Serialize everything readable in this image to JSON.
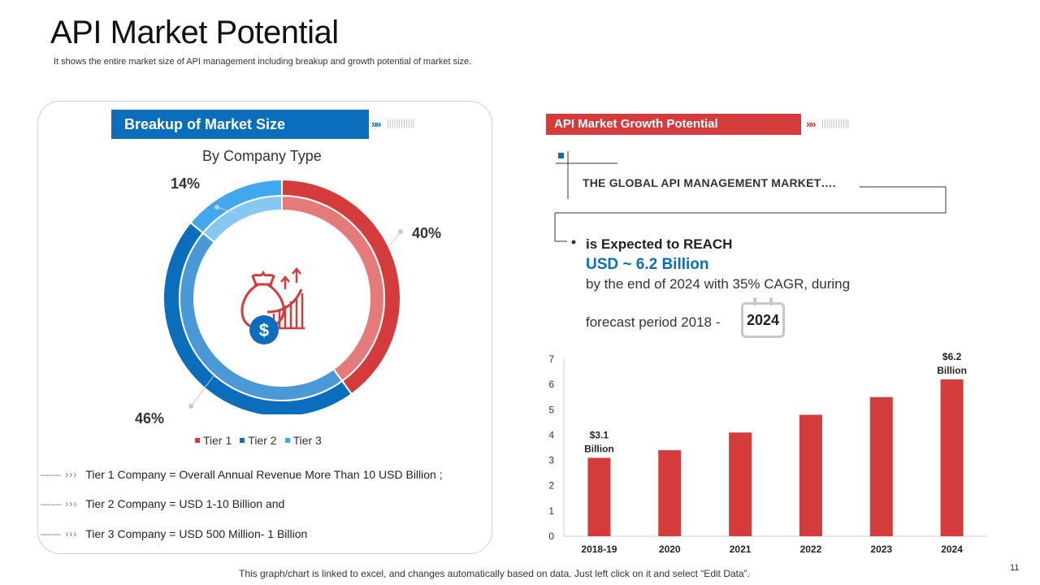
{
  "header": {
    "title": "API Market Potential",
    "subtitle": "It shows the entire market size of API  management including breakup and growth potential of market size."
  },
  "left": {
    "header": "Breakup of  Market Size",
    "chevrons": "»»",
    "ticks": "||||||||||||",
    "by_company": "By Company Type",
    "tier_descriptions": [
      "Tier 1 Company = Overall Annual Revenue More Than 10 USD Billion ;",
      "Tier 2 Company = USD 1-10 Billion and",
      "Tier 3 Company = USD 500 Million-  1 Billion"
    ],
    "tier_arrow": "—— ›››"
  },
  "right": {
    "header": "API Market Growth Potential",
    "chevrons": "»»",
    "ticks": "||||||||||||",
    "global_text": "THE GLOBAL API MANAGEMENT MARKET….",
    "expected": "is Expected to REACH",
    "usd": "USD ~ 6.2 Billion",
    "by_end": "by the end of 2024 with 35% CAGR, during",
    "forecast": "forecast period 2018  -",
    "badge_year": "2024"
  },
  "footer": {
    "note": "This graph/chart is linked to excel, and changes automatically based on data. Just left click on it and select “Edit Data”.",
    "page_number": "11"
  },
  "colors": {
    "tier1": "#d43c3c",
    "tier1_inner": "#e57a7a",
    "tier2": "#0a6ebd",
    "tier2_inner": "#4a98d6",
    "tier3": "#41a7ee",
    "tier3_inner": "#86c8f2",
    "bar": "#d43c3c"
  },
  "icons": {
    "center": "money-bag-growth-icon"
  },
  "chart_data": [
    {
      "type": "pie",
      "title": "By Company Type",
      "categories": [
        "Tier 1",
        "Tier 2",
        "Tier 3"
      ],
      "values": [
        40,
        46,
        14
      ],
      "labels": [
        "40%",
        "46%",
        "14%"
      ],
      "legend": "bottom"
    },
    {
      "type": "bar",
      "categories": [
        "2018-19",
        "2020",
        "2021",
        "2022",
        "2023",
        "2024"
      ],
      "values": [
        3.1,
        3.4,
        4.1,
        4.8,
        5.5,
        6.2
      ],
      "ylim": [
        0,
        7
      ],
      "yticks": [
        "0",
        "1",
        "2",
        "3",
        "4",
        "5",
        "6",
        "7"
      ],
      "annotations": [
        {
          "category": "2018-19",
          "line1": "$3.1",
          "line2": "Billion"
        },
        {
          "category": "2024",
          "line1": "$6.2",
          "line2": "Billion"
        }
      ],
      "xlabel": "",
      "ylabel": ""
    }
  ]
}
